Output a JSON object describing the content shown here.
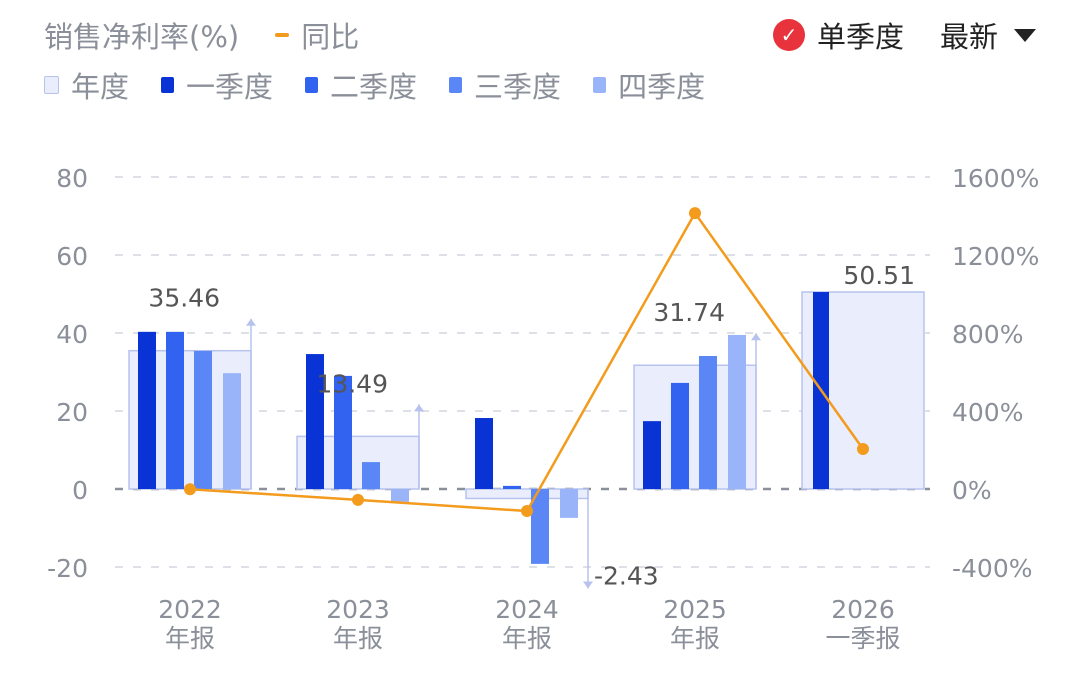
{
  "header": {
    "title": "销售净利率(%)",
    "yoy_label": "同比",
    "toggle_label": "单季度",
    "sort_label": "最新"
  },
  "colors": {
    "annual_fill": "#e9edfc",
    "annual_stroke": "#b7c3ee",
    "q1": "#0a33d6",
    "q2": "#3262f0",
    "q3": "#5b86f6",
    "q4": "#9ab4fa",
    "yoy": "#f39b1d"
  },
  "chart_data": {
    "type": "bar",
    "title": "销售净利率(%)",
    "categories": [
      [
        "2022",
        "年报"
      ],
      [
        "2023",
        "年报"
      ],
      [
        "2024",
        "年报"
      ],
      [
        "2025",
        "年报"
      ],
      [
        "2026",
        "一季报"
      ]
    ],
    "legend": [
      "年度",
      "一季度",
      "二季度",
      "三季度",
      "四季度"
    ],
    "series": [
      {
        "name": "年度",
        "values": [
          35.46,
          13.49,
          -2.43,
          31.74,
          50.51
        ]
      },
      {
        "name": "一季度",
        "values": [
          40.3,
          34.6,
          18.2,
          17.4,
          50.51
        ]
      },
      {
        "name": "二季度",
        "values": [
          40.3,
          29.0,
          0.8,
          27.2,
          null
        ]
      },
      {
        "name": "三季度",
        "values": [
          35.4,
          6.9,
          -19.2,
          34.1,
          null
        ]
      },
      {
        "name": "四季度",
        "values": [
          29.7,
          -3.3,
          -7.4,
          39.5,
          null
        ]
      }
    ],
    "yoy": {
      "name": "同比",
      "values": [
        -1,
        -56,
        -113,
        1415,
        205
      ]
    },
    "ylim": [
      -20,
      80
    ],
    "yticks": [
      "80",
      "60",
      "40",
      "20",
      "0",
      "-20"
    ],
    "y2lim": [
      -400,
      1600
    ],
    "y2ticks": [
      "1600%",
      "1200%",
      "800%",
      "400%",
      "0%",
      "-400%"
    ],
    "legend_position": "top-left",
    "grid": true
  }
}
